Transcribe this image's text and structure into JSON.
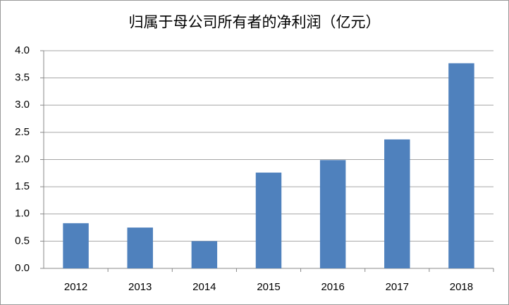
{
  "chart_data": {
    "type": "bar",
    "title": "归属于母公司所有者的净利润（亿元）",
    "categories": [
      "2012",
      "2013",
      "2014",
      "2015",
      "2016",
      "2017",
      "2018"
    ],
    "values": [
      0.83,
      0.75,
      0.5,
      1.76,
      1.99,
      2.37,
      3.77
    ],
    "color": "#4f81bd",
    "ylim": [
      0,
      4
    ],
    "yticks": [
      {
        "value": 0,
        "label": "0.0"
      },
      0.5,
      {
        "value": 1,
        "label": "1.0"
      },
      1.5,
      {
        "value": 2,
        "label": "2.0"
      },
      2.5,
      {
        "value": 3,
        "label": "3.0"
      },
      3.5,
      {
        "value": 4,
        "label": "4.0"
      }
    ],
    "grid": true
  }
}
